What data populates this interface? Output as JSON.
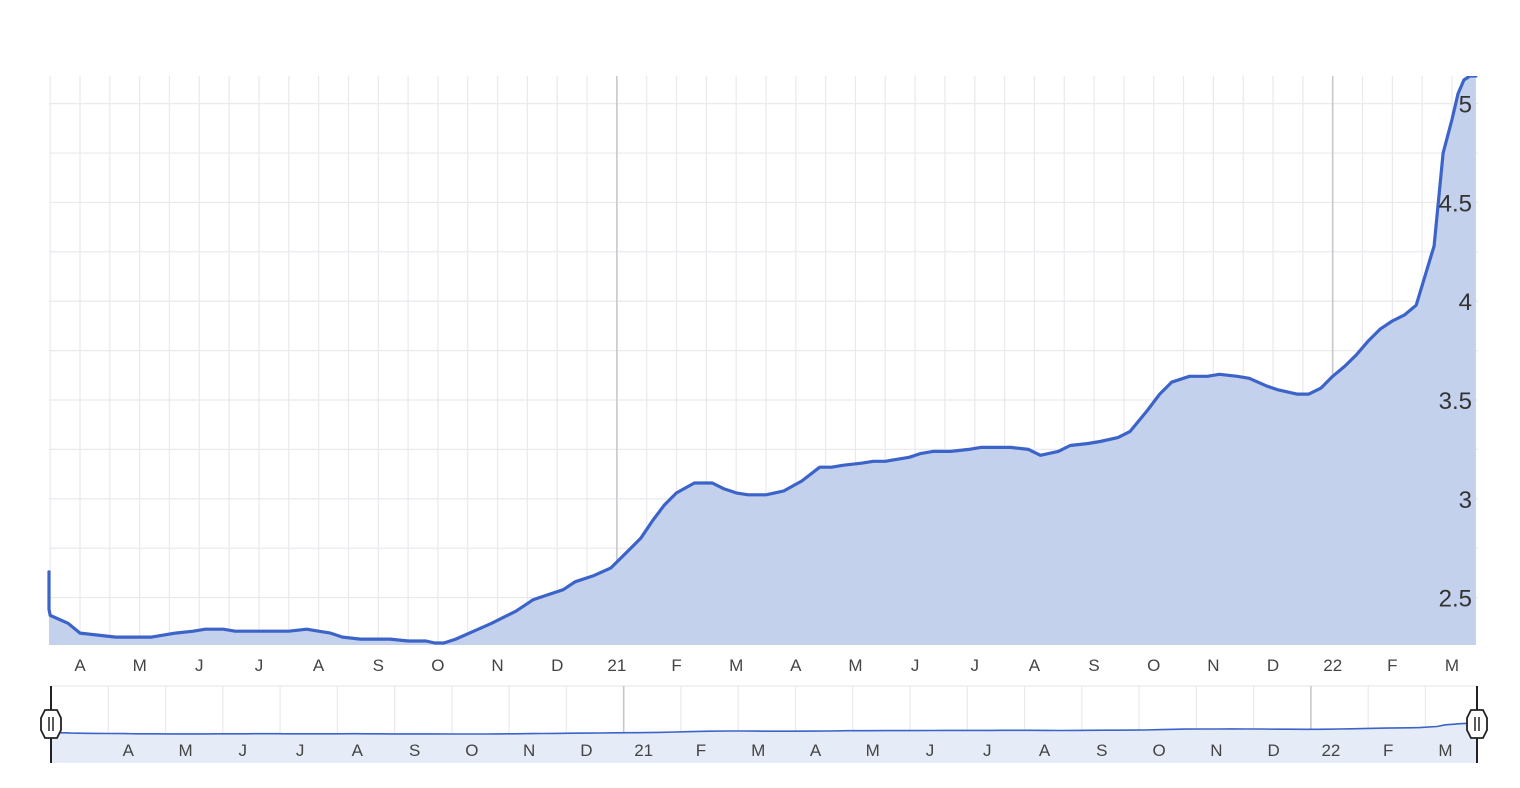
{
  "colors": {
    "line": "#3c64c8",
    "area": "#c4d1ec",
    "grid_minor": "#e9e9ee",
    "grid_major": "#c8c8cc",
    "nav_area": "#e6ecf7",
    "handle_stroke": "#222222"
  },
  "chart_data": {
    "type": "area",
    "title": "",
    "xlabel": "",
    "ylabel": "",
    "y_axis_side": "right",
    "ylim": [
      2.26,
      5.14
    ],
    "yticks": [
      "2.5",
      "3",
      "3.5",
      "4",
      "4.5",
      "5"
    ],
    "x_tick_labels": [
      "A",
      "M",
      "J",
      "J",
      "A",
      "S",
      "O",
      "N",
      "D",
      "21",
      "F",
      "M",
      "A",
      "M",
      "J",
      "J",
      "A",
      "S",
      "O",
      "N",
      "D",
      "22",
      "F",
      "M"
    ],
    "x_tick_months": [
      1,
      2,
      3,
      4,
      5,
      6,
      7,
      8,
      9,
      10,
      11,
      12,
      13,
      14,
      15,
      16,
      17,
      18,
      19,
      20,
      21,
      22,
      23,
      24
    ],
    "major_ticks": [
      "21",
      "22"
    ],
    "grid": true,
    "series": [
      {
        "x_month": [
          -0.5,
          -0.25,
          -0.15,
          0.1,
          0.3,
          0.5,
          0.8,
          1.0,
          1.3,
          1.6,
          1.9,
          2.2,
          2.4,
          2.6,
          2.9,
          3.1,
          3.4,
          3.6,
          3.9,
          4.2,
          4.5,
          4.8,
          5.0,
          5.2,
          5.4,
          5.7,
          6.0,
          6.2,
          6.5,
          6.8,
          6.95,
          7.1,
          7.3,
          7.6,
          7.9,
          8.1,
          8.3,
          8.6,
          8.9,
          9.1,
          9.3,
          9.6,
          9.9,
          10.1,
          10.4,
          10.6,
          10.8,
          11.0,
          11.3,
          11.6,
          11.8,
          12.0,
          12.2,
          12.5,
          12.8,
          13.1,
          13.4,
          13.6,
          13.8,
          14.1,
          14.3,
          14.5,
          14.9,
          15.1,
          15.3,
          15.6,
          15.9,
          16.1,
          16.3,
          16.6,
          16.9,
          17.1,
          17.4,
          17.6,
          17.9,
          18.1,
          18.4,
          18.6,
          18.9,
          19.1,
          19.3,
          19.6,
          19.9,
          20.1,
          20.4,
          20.6,
          20.9,
          21.1,
          21.4,
          21.6,
          21.8,
          22.0,
          22.2,
          22.4,
          22.6,
          22.8,
          23.0,
          23.2,
          23.4,
          23.7,
          23.85,
          24.0,
          24.1,
          24.2,
          24.3,
          24.4
        ],
        "values": [
          2.63,
          2.58,
          2.52,
          2.47,
          2.44,
          2.41,
          2.37,
          2.32,
          2.31,
          2.3,
          2.3,
          2.3,
          2.31,
          2.32,
          2.33,
          2.34,
          2.34,
          2.33,
          2.33,
          2.33,
          2.33,
          2.34,
          2.33,
          2.32,
          2.3,
          2.29,
          2.29,
          2.29,
          2.28,
          2.28,
          2.27,
          2.27,
          2.29,
          2.33,
          2.37,
          2.4,
          2.43,
          2.49,
          2.52,
          2.54,
          2.58,
          2.61,
          2.65,
          2.71,
          2.8,
          2.89,
          2.97,
          3.03,
          3.08,
          3.08,
          3.05,
          3.03,
          3.02,
          3.02,
          3.04,
          3.09,
          3.16,
          3.16,
          3.17,
          3.18,
          3.19,
          3.19,
          3.21,
          3.23,
          3.24,
          3.24,
          3.25,
          3.26,
          3.26,
          3.26,
          3.25,
          3.22,
          3.24,
          3.27,
          3.28,
          3.29,
          3.31,
          3.34,
          3.45,
          3.53,
          3.59,
          3.62,
          3.62,
          3.63,
          3.62,
          3.61,
          3.57,
          3.55,
          3.53,
          3.53,
          3.56,
          3.62,
          3.67,
          3.73,
          3.8,
          3.86,
          3.9,
          3.93,
          3.98,
          4.28,
          4.75,
          4.92,
          5.05,
          5.12,
          5.14,
          5.14
        ]
      }
    ],
    "navigator": {
      "x_tick_labels": [
        "A",
        "M",
        "J",
        "J",
        "A",
        "S",
        "O",
        "N",
        "D",
        "21",
        "F",
        "M",
        "A",
        "M",
        "J",
        "J",
        "A",
        "S",
        "O",
        "N",
        "D",
        "22",
        "F",
        "M"
      ]
    }
  }
}
